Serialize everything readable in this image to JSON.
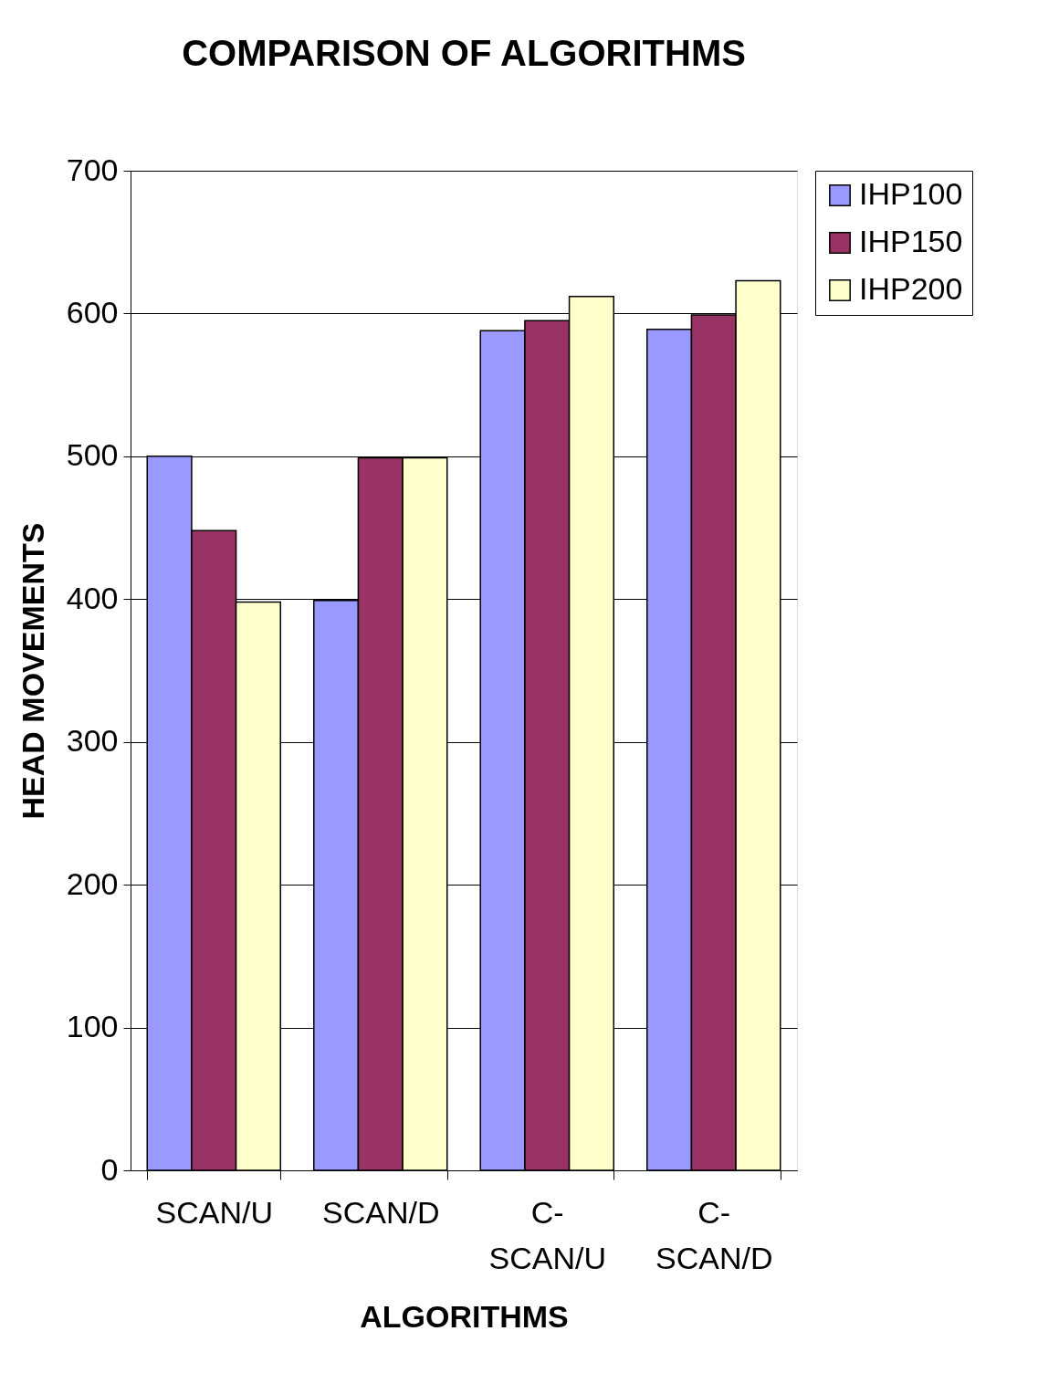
{
  "chart_data": {
    "type": "bar",
    "title": "COMPARISON OF ALGORITHMS",
    "xlabel": "ALGORITHMS",
    "ylabel": "HEAD MOVEMENTS",
    "categories": [
      "SCAN/U",
      "SCAN/D",
      "C-SCAN/U",
      "C-SCAN/D"
    ],
    "series": [
      {
        "name": "IHP100",
        "color": "#9999ff",
        "values": [
          500,
          399,
          588,
          589
        ]
      },
      {
        "name": "IHP150",
        "color": "#993366",
        "values": [
          448,
          499,
          595,
          599
        ]
      },
      {
        "name": "IHP200",
        "color": "#ffffcc",
        "values": [
          398,
          499,
          612,
          623
        ]
      }
    ],
    "ylim": [
      0,
      700
    ],
    "yticks": [
      0,
      100,
      200,
      300,
      400,
      500,
      600,
      700
    ],
    "grid": "y",
    "legend": "right"
  }
}
